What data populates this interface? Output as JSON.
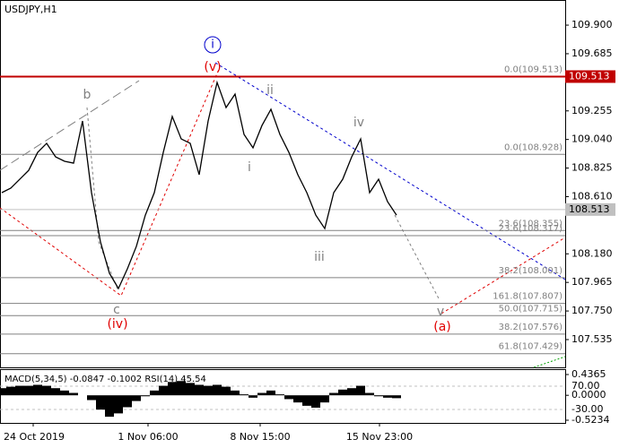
{
  "chart_data": {
    "type": "line",
    "title": "USDJPY,H1",
    "xlim": [
      -0.2,
      62.8
    ],
    "xticks": [
      {
        "value": 3.5,
        "label": "24 Oct 2019"
      },
      {
        "value": 16.3,
        "label": "1 Nov 06:00"
      },
      {
        "value": 28.8,
        "label": "8 Nov 15:00"
      },
      {
        "value": 42.1,
        "label": "15 Nov 23:00"
      }
    ],
    "ylim": [
      107.326,
      110.089
    ],
    "yticks": [
      {
        "value": 109.9,
        "label": "109.900"
      },
      {
        "value": 109.685,
        "label": "109.685"
      },
      {
        "value": 109.255,
        "label": "109.255"
      },
      {
        "value": 109.04,
        "label": "109.040"
      },
      {
        "value": 108.825,
        "label": "108.825"
      },
      {
        "value": 108.61,
        "label": "108.610"
      },
      {
        "value": 108.18,
        "label": "108.180"
      },
      {
        "value": 107.965,
        "label": "107.965"
      },
      {
        "value": 107.75,
        "label": "107.750"
      },
      {
        "value": 107.535,
        "label": "107.535"
      }
    ],
    "series": [
      {
        "name": "USDJPY",
        "color": "#000000",
        "values": [
          108.64,
          108.674,
          108.741,
          108.808,
          108.943,
          109.011,
          108.909,
          108.876,
          108.862,
          109.179,
          108.64,
          108.269,
          108.034,
          107.919,
          108.067,
          108.236,
          108.471,
          108.64,
          108.943,
          109.213,
          109.044,
          109.011,
          108.775,
          109.179,
          109.469,
          109.28,
          109.381,
          109.078,
          108.977,
          109.145,
          109.267,
          109.078,
          108.943,
          108.775,
          108.64,
          108.471,
          108.37,
          108.64,
          108.741,
          108.909,
          109.044,
          108.64,
          108.741,
          108.572,
          108.471
        ]
      }
    ],
    "levels": [
      {
        "value": 109.513,
        "label": "0.0(109.513)"
      },
      {
        "value": 108.928,
        "label": "0.0(108.928)"
      },
      {
        "value": 108.355,
        "label": "23.6(108.355)"
      },
      {
        "value": 108.317,
        "label": "23.6(108.317)"
      },
      {
        "value": 108.001,
        "label": "38.2(108.001)"
      },
      {
        "value": 107.807,
        "label": "161.8(107.807)"
      },
      {
        "value": 107.715,
        "label": "50.0(107.715)"
      },
      {
        "value": 107.576,
        "label": "38.2(107.576)"
      },
      {
        "value": 107.429,
        "label": "61.8(107.429)"
      }
    ],
    "price_marker": {
      "value": 109.513,
      "label": "109.513",
      "color": "#c00000"
    },
    "last_price": {
      "value": 108.513,
      "label": "108.513",
      "color": "#c0c0c0"
    },
    "annotations": [
      "b",
      "c",
      "(iv)",
      "(v)",
      "i",
      "ii",
      "i",
      "iii",
      "iv",
      "v",
      "(a)"
    ],
    "macd": {
      "label": "MACD(5,34,5) -0.0847 -0.1002 RSI(14) 45.54",
      "ylim": [
        -0.5234,
        0.4365
      ],
      "yticks": [
        {
          "value": 0.4365,
          "label": "0.4365"
        },
        {
          "value": 0,
          "label": "0.0000"
        },
        {
          "value": -0.5234,
          "label": "-0.5234"
        }
      ],
      "rsi_ylim": [
        -76.2,
        120
      ],
      "rsi_yticks": [
        {
          "value": 70,
          "label": "70.00"
        },
        {
          "value": -30,
          "label": "-30.00"
        }
      ],
      "values": [
        0.15,
        0.18,
        0.2,
        0.2,
        0.22,
        0.2,
        0.15,
        0.1,
        0.05,
        0.0,
        -0.1,
        -0.3,
        -0.45,
        -0.38,
        -0.25,
        -0.12,
        -0.02,
        0.1,
        0.2,
        0.28,
        0.3,
        0.26,
        0.22,
        0.2,
        0.22,
        0.18,
        0.1,
        0.02,
        -0.05,
        0.05,
        0.1,
        0.02,
        -0.08,
        -0.15,
        -0.22,
        -0.26,
        -0.15,
        0.05,
        0.12,
        0.15,
        0.2,
        0.05,
        -0.02,
        -0.05,
        -0.06
      ]
    }
  }
}
